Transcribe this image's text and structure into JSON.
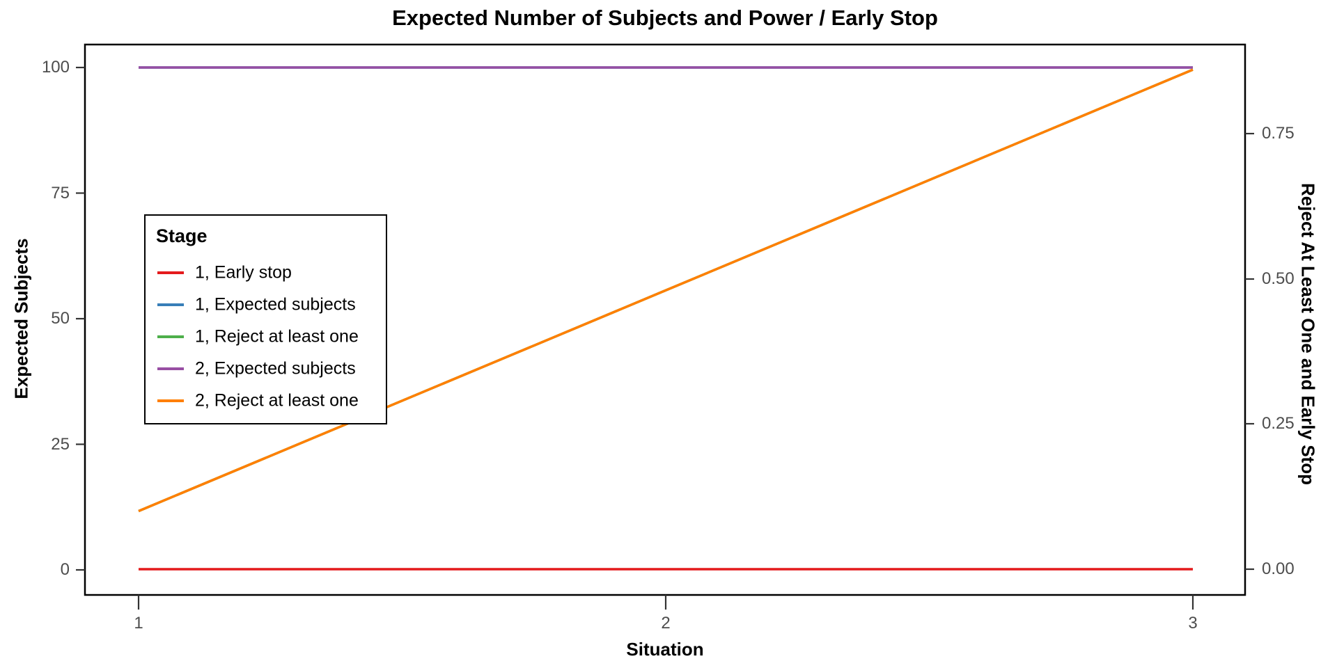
{
  "title": "Expected Number of Subjects and Power / Early Stop",
  "axes": {
    "left": {
      "label": "Expected Subjects",
      "ticks": [
        "100",
        "75",
        "50",
        "25",
        "0"
      ]
    },
    "right": {
      "label": "Reject At Least One and Early Stop",
      "ticks": [
        "0.75",
        "0.50",
        "0.25",
        "0.00"
      ]
    },
    "x": {
      "label": "Situation",
      "ticks": [
        "1",
        "2",
        "3"
      ]
    }
  },
  "legend": {
    "title": "Stage",
    "items": [
      {
        "label": "1, Early stop",
        "color": "#E41A1C"
      },
      {
        "label": "1, Expected subjects",
        "color": "#377EB8"
      },
      {
        "label": "1, Reject at least one",
        "color": "#4DAF4A"
      },
      {
        "label": "2, Expected subjects",
        "color": "#984EA3"
      },
      {
        "label": "2, Reject at least one",
        "color": "#FF7F00"
      }
    ]
  },
  "colors": {
    "tick_label": "#4d4d4d",
    "axis_line": "#000000",
    "background": "#ffffff"
  },
  "chart_data": {
    "type": "line",
    "title": "Expected Number of Subjects and Power / Early Stop",
    "xlabel": "Situation",
    "ylabel_left": "Expected Subjects",
    "ylabel_right": "Reject At Least One and Early Stop",
    "x": [
      1,
      2,
      3
    ],
    "ylim_left": [
      0,
      105
    ],
    "ylim_right": [
      0,
      0.9
    ],
    "grid": false,
    "legend_title": "Stage",
    "legend_position": "inside-left",
    "series": [
      {
        "name": "1, Early stop",
        "color": "#E41A1C",
        "axis": "right",
        "values": [
          0.0,
          0.0,
          0.0
        ]
      },
      {
        "name": "1, Expected subjects",
        "color": "#377EB8",
        "axis": "left",
        "values": [
          100,
          100,
          100
        ],
        "note": "occluded by series 2, Expected subjects"
      },
      {
        "name": "1, Reject at least one",
        "color": "#4DAF4A",
        "axis": "right",
        "values": [
          0.1,
          0.48,
          0.86
        ],
        "note": "occluded by series 2, Reject at least one"
      },
      {
        "name": "2, Expected subjects",
        "color": "#984EA3",
        "axis": "left",
        "values": [
          100,
          100,
          100
        ]
      },
      {
        "name": "2, Reject at least one",
        "color": "#FF7F00",
        "axis": "right",
        "values": [
          0.1,
          0.48,
          0.86
        ]
      }
    ]
  }
}
